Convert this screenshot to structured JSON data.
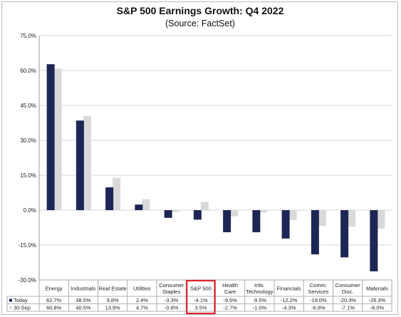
{
  "colors": {
    "today": "#1c2755",
    "sep30": "#d9d9d9",
    "grid": "#d6d6d6",
    "highlight": "#d9262f"
  },
  "chart_data": {
    "type": "bar",
    "title": "S&P 500 Earnings Growth: Q4 2022",
    "subtitle": "(Source: FactSet)",
    "ylim": [
      -30,
      75
    ],
    "yticks": [
      75,
      60,
      45,
      30,
      15,
      0,
      -15,
      -30
    ],
    "ytick_labels": [
      "75.0%",
      "60.0%",
      "45.0%",
      "30.0%",
      "15.0%",
      "0.0%",
      "-15.0%",
      "-30.0%"
    ],
    "grid": true,
    "categories": [
      [
        "Energy"
      ],
      [
        "Industrials"
      ],
      [
        "Real Estate"
      ],
      [
        "Utilities"
      ],
      [
        "Consumer",
        "Staples"
      ],
      [
        "S&P 500"
      ],
      [
        "Health",
        "Care"
      ],
      [
        "Info.",
        "Technology"
      ],
      [
        "Financials"
      ],
      [
        "Comm.",
        "Services"
      ],
      [
        "Consumer",
        "Disc."
      ],
      [
        "Materials"
      ]
    ],
    "highlight_category_index": 5,
    "series": [
      {
        "name": "Today",
        "color": "#1c2755",
        "values": [
          62.7,
          38.5,
          9.8,
          2.4,
          -3.3,
          -4.1,
          -9.5,
          -9.5,
          -12.2,
          -19.0,
          -20.3,
          -26.3
        ],
        "labels": [
          "62.7%",
          "38.5%",
          "9.8%",
          "2.4%",
          "-3.3%",
          "-4.1%",
          "-9.5%",
          "-9.5%",
          "-12.2%",
          "-19.0%",
          "-20.3%",
          "-26.3%"
        ]
      },
      {
        "name": "30-Sep",
        "color": "#d9d9d9",
        "values": [
          60.8,
          40.5,
          13.9,
          4.7,
          -0.8,
          3.5,
          -2.7,
          -1.0,
          -4.3,
          -6.8,
          -7.1,
          -8.0
        ],
        "labels": [
          "60.8%",
          "40.5%",
          "13.9%",
          "4.7%",
          "-0.8%",
          "3.5%",
          "-2.7%",
          "-1.0%",
          "-4.3%",
          "-6.8%",
          "-7.1%",
          "-8.0%"
        ]
      }
    ]
  }
}
